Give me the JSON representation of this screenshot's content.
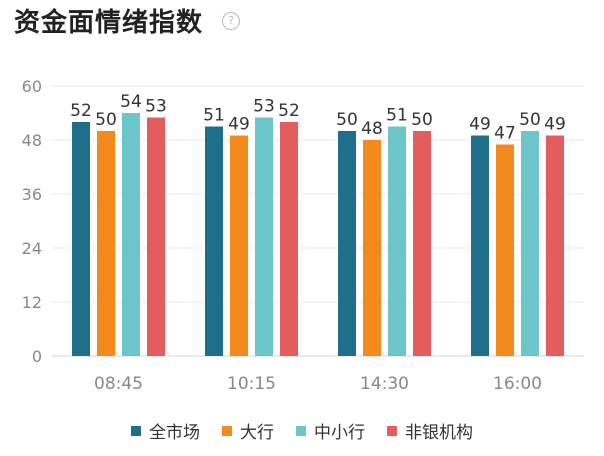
{
  "title": "资金面情绪指数",
  "help_icon": "question-icon",
  "colors": [
    "#1f6f8b",
    "#f28a1e",
    "#6cc6c9",
    "#e35d5f"
  ],
  "chart_data": {
    "type": "bar",
    "categories": [
      "08:45",
      "10:15",
      "14:30",
      "16:00"
    ],
    "series": [
      {
        "name": "全市场",
        "values": [
          52,
          51,
          50,
          49
        ]
      },
      {
        "name": "大行",
        "values": [
          50,
          49,
          48,
          47
        ]
      },
      {
        "name": "中小行",
        "values": [
          54,
          53,
          51,
          50
        ]
      },
      {
        "name": "非银机构",
        "values": [
          53,
          52,
          50,
          49
        ]
      }
    ],
    "ylim": [
      0,
      60
    ],
    "yticks": [
      0,
      12,
      24,
      36,
      48,
      60
    ],
    "grid": true,
    "legend": "bottom"
  }
}
